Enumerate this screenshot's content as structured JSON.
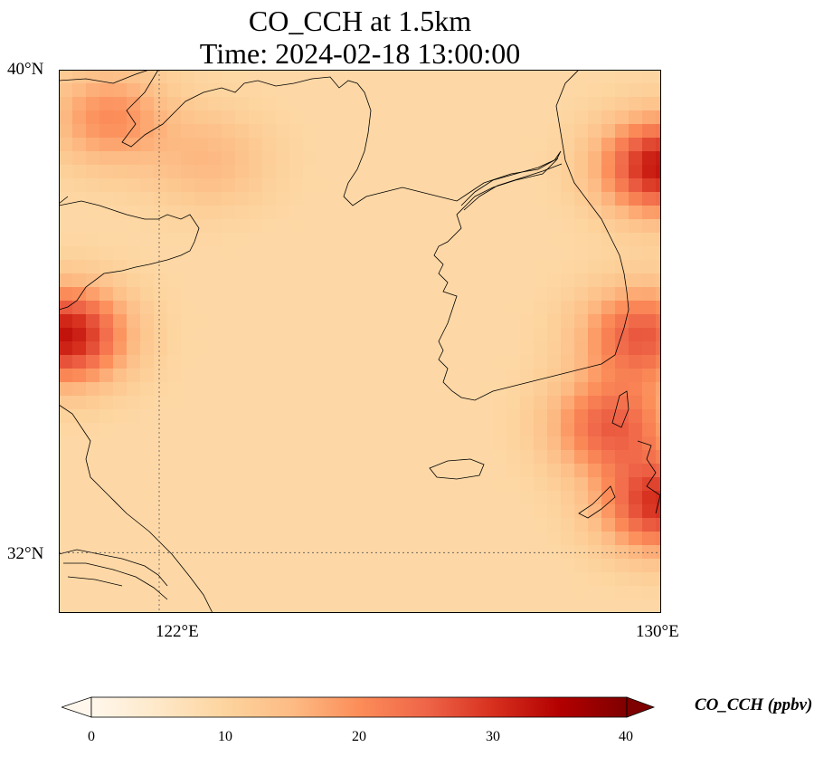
{
  "title": {
    "line1": "CO_CCH at 1.5km",
    "line2": "Time: 2024-02-18 13:00:00"
  },
  "map": {
    "projection": "PlateCarree",
    "lon_range": [
      120.4,
      130.0
    ],
    "lat_range": [
      31.0,
      40.0
    ],
    "gridlines": {
      "style": "dotted",
      "lons": [
        122,
        130
      ],
      "lats": [
        32,
        40
      ]
    },
    "lat_ticks": [
      "40°N",
      "32°N"
    ],
    "lon_ticks": [
      "122°E",
      "130°E"
    ],
    "features": [
      "coastline",
      "Korean Peninsula",
      "Jeju Island",
      "Shandong Peninsula",
      "Liaodong Peninsula",
      "Yangtze estuary",
      "Yellow Sea"
    ]
  },
  "colorbar": {
    "label": "CO_CCH (ppbv)",
    "colormap": "OrRd",
    "min": 0,
    "max": 40,
    "extend": "both",
    "ticks": [
      "0",
      "10",
      "20",
      "30",
      "40"
    ],
    "colors": [
      "#fff7ec",
      "#fee8c8",
      "#fdd49e",
      "#fdbb84",
      "#fc8d59",
      "#ef6548",
      "#d7301f",
      "#b30000",
      "#7f0000"
    ]
  },
  "field": {
    "background_value": 9,
    "hotspots": [
      {
        "name": "west-coast-plume",
        "lon": 120.5,
        "lat": 35.6,
        "value": 33
      },
      {
        "name": "liaodong-north",
        "lon": 121.2,
        "lat": 39.2,
        "value": 20
      },
      {
        "name": "bohai-band",
        "lon": 122.8,
        "lat": 38.5,
        "value": 15
      },
      {
        "name": "northeast-corner",
        "lon": 130.0,
        "lat": 38.4,
        "value": 33
      },
      {
        "name": "korea-east-coast",
        "lon": 129.7,
        "lat": 35.6,
        "value": 26
      },
      {
        "name": "southeast-corner",
        "lon": 130.0,
        "lat": 32.8,
        "value": 30
      },
      {
        "name": "tsushima-region",
        "lon": 129.2,
        "lat": 34.1,
        "value": 25
      }
    ]
  }
}
